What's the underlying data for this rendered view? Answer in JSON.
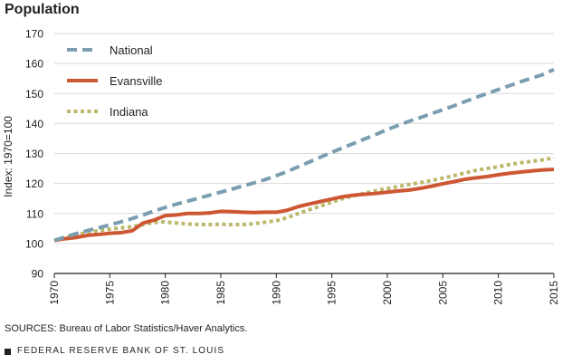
{
  "chart_data": {
    "type": "line",
    "title": "Population",
    "xlabel": "",
    "ylabel": "Index: 1970=100",
    "xlim": [
      1970,
      2015
    ],
    "ylim": [
      90,
      170
    ],
    "x_ticks": [
      1970,
      1975,
      1980,
      1985,
      1990,
      1995,
      2000,
      2005,
      2010,
      2015
    ],
    "y_ticks": [
      90,
      100,
      110,
      120,
      130,
      140,
      150,
      160,
      170
    ],
    "grid": "horizontal",
    "legend_position": "top-left",
    "x": [
      1970,
      1971,
      1972,
      1973,
      1974,
      1975,
      1976,
      1977,
      1978,
      1979,
      1980,
      1981,
      1982,
      1983,
      1984,
      1985,
      1986,
      1987,
      1988,
      1989,
      1990,
      1991,
      1992,
      1993,
      1994,
      1995,
      1996,
      1997,
      1998,
      1999,
      2000,
      2001,
      2002,
      2003,
      2004,
      2005,
      2006,
      2007,
      2008,
      2009,
      2010,
      2011,
      2012,
      2013,
      2014,
      2015
    ],
    "series": [
      {
        "name": "National",
        "color": "#7b9db0",
        "style": "dashed",
        "values": [
          101.0,
          102.2,
          103.3,
          104.3,
          105.2,
          106.2,
          107.2,
          108.3,
          109.5,
          110.8,
          112.0,
          113.1,
          114.1,
          115.1,
          116.1,
          117.1,
          118.1,
          119.2,
          120.2,
          121.3,
          122.6,
          124.0,
          125.6,
          127.2,
          128.8,
          130.4,
          131.9,
          133.4,
          134.9,
          136.4,
          138.0,
          139.4,
          140.8,
          142.0,
          143.3,
          144.6,
          145.9,
          147.3,
          148.7,
          150.0,
          151.3,
          152.6,
          153.9,
          155.1,
          156.3,
          158.0
        ]
      },
      {
        "name": "Evansville",
        "color": "#cd5733",
        "style": "solid",
        "values": [
          101.0,
          101.6,
          102.0,
          102.7,
          103.0,
          103.4,
          103.6,
          104.2,
          106.8,
          107.8,
          109.3,
          109.5,
          110.0,
          110.0,
          110.2,
          110.7,
          110.6,
          110.4,
          110.3,
          110.4,
          110.4,
          111.1,
          112.3,
          113.2,
          114.0,
          114.8,
          115.6,
          116.1,
          116.4,
          116.7,
          117.1,
          117.5,
          117.8,
          118.4,
          119.1,
          119.9,
          120.6,
          121.4,
          121.9,
          122.3,
          122.9,
          123.4,
          123.8,
          124.2,
          124.5,
          124.7
        ]
      },
      {
        "name": "Indiana",
        "color": "#bcb86a",
        "style": "dotted",
        "values": [
          101.0,
          102.0,
          103.0,
          103.6,
          104.3,
          104.8,
          105.2,
          105.6,
          106.3,
          107.0,
          107.2,
          106.8,
          106.5,
          106.3,
          106.3,
          106.4,
          106.3,
          106.3,
          106.6,
          107.1,
          107.6,
          108.6,
          110.0,
          111.3,
          112.5,
          113.8,
          115.0,
          115.9,
          116.8,
          117.6,
          118.3,
          119.0,
          119.7,
          120.3,
          121.0,
          121.8,
          122.6,
          123.5,
          124.4,
          125.0,
          125.6,
          126.3,
          126.9,
          127.4,
          127.9,
          128.5
        ]
      }
    ]
  },
  "source_note": "SOURCES: Bureau of Labor Statistics/Haver Analytics.",
  "footer_org": "FEDERAL RESERVE BANK OF ST. LOUIS"
}
